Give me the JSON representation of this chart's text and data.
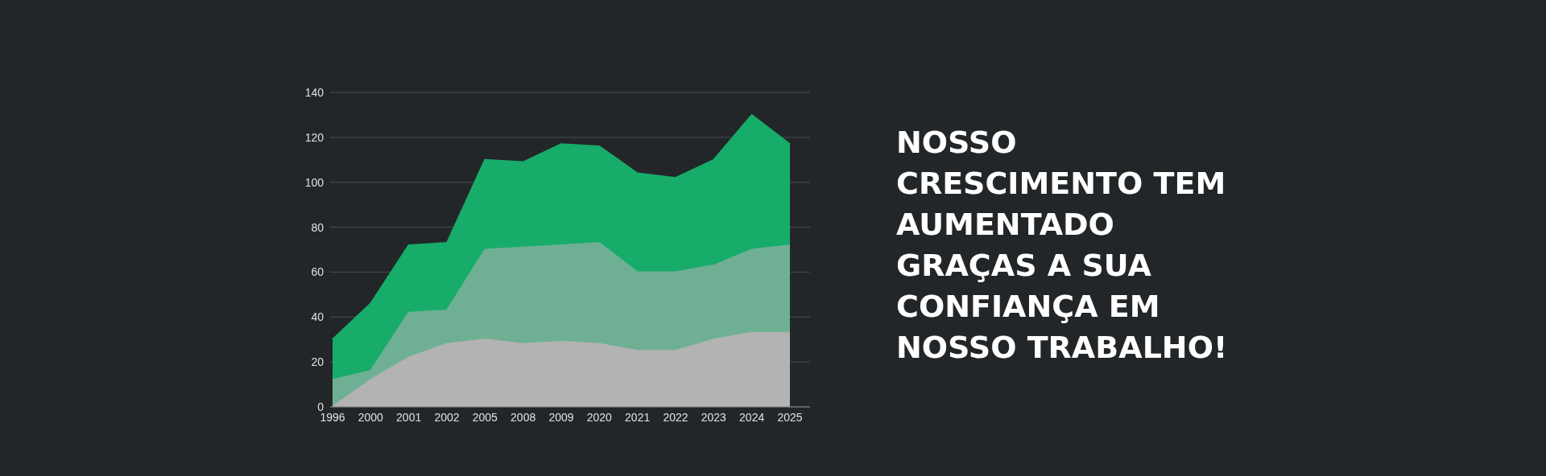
{
  "chart_data": {
    "type": "area",
    "title": "NOSSO\nCRESCIMENTO TEM\nAUMENTADO\nGRAÇAS A SUA\nCONFIANÇA EM\nNOSSO TRABALHO!",
    "categories": [
      "1996",
      "2000",
      "2001",
      "2002",
      "2005",
      "2008",
      "2009",
      "2020",
      "2021",
      "2022",
      "2023",
      "2024",
      "2025"
    ],
    "series": [
      {
        "color": "#17ac6a",
        "values": [
          30,
          46,
          72,
          73,
          110,
          109,
          117,
          116,
          104,
          102,
          110,
          130,
          117
        ]
      },
      {
        "color": "#6fb094",
        "values": [
          12,
          16,
          42,
          43,
          70,
          71,
          72,
          73,
          60,
          60,
          63,
          70,
          72
        ]
      },
      {
        "color": "#b3b3b3",
        "values": [
          0,
          12,
          22,
          28,
          30,
          28,
          29,
          28,
          25,
          25,
          30,
          33,
          33
        ]
      }
    ],
    "ylim": [
      0,
      140
    ],
    "yticks": [
      0,
      20,
      40,
      60,
      80,
      100,
      120,
      140
    ],
    "grid": "y"
  }
}
